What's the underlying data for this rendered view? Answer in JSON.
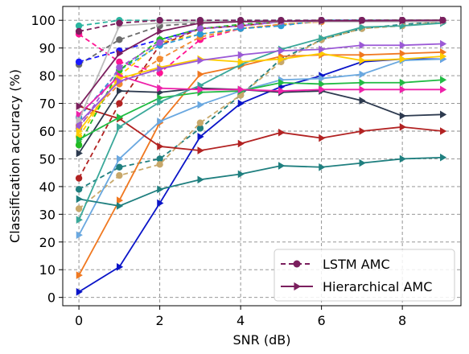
{
  "chart_data": {
    "type": "line",
    "xlabel": "SNR (dB)",
    "ylabel": "Classification accuracy (%)",
    "xlim": [
      -0.4,
      9.45
    ],
    "ylim": [
      -3,
      105
    ],
    "xticks": [
      0,
      2,
      4,
      6,
      8
    ],
    "yticks": [
      0,
      10,
      20,
      30,
      40,
      50,
      60,
      70,
      80,
      90,
      100
    ],
    "grid": true,
    "legend_placement": "lower-right",
    "x": [
      0,
      1,
      2,
      3,
      4,
      5,
      6,
      7,
      8,
      9
    ],
    "series": [
      {
        "name": "LSTM AMC",
        "style": "dashed",
        "marker": "circle",
        "color": "#7b1f5e",
        "values": [
          96,
          99,
          100,
          100,
          100,
          100,
          100,
          100,
          100,
          100
        ]
      },
      {
        "name": "Hierarchical AMC",
        "style": "solid",
        "marker": "triangle-right",
        "color": "#7b1f5e",
        "values": [
          69,
          88,
          96,
          99,
          99.5,
          99.7,
          99.8,
          99.8,
          99.9,
          100
        ]
      },
      {
        "style": "dashed",
        "marker": "circle",
        "color": "#2bb5a0",
        "values": [
          98,
          100,
          100,
          100,
          100,
          100,
          100,
          100,
          100,
          100
        ]
      },
      {
        "style": "dashed",
        "marker": "circle",
        "color": "#6b6b6b",
        "values": [
          84,
          93,
          98,
          99,
          99.5,
          99.7,
          100,
          100,
          100,
          100
        ]
      },
      {
        "style": "dashed",
        "marker": "circle",
        "color": "#1a1aff",
        "values": [
          85,
          89,
          93,
          97,
          98,
          99.5,
          100,
          100,
          100,
          100
        ]
      },
      {
        "style": "dashed",
        "marker": "circle",
        "color": "#ff1493",
        "values": [
          95,
          85,
          81,
          93,
          97,
          98.5,
          99.5,
          100,
          100,
          100
        ]
      },
      {
        "style": "dashed",
        "marker": "circle",
        "color": "#ffcc00",
        "values": [
          58,
          80,
          92,
          95,
          97,
          98.5,
          99.5,
          100,
          100,
          100
        ]
      },
      {
        "style": "dashed",
        "marker": "circle",
        "color": "#f28a30",
        "values": [
          62,
          77,
          86,
          94,
          97,
          98.5,
          99.5,
          100,
          100,
          100
        ]
      },
      {
        "style": "dashed",
        "marker": "circle",
        "color": "#b22222",
        "values": [
          43,
          70,
          91,
          97,
          98,
          99.5,
          100,
          100,
          100,
          100
        ]
      },
      {
        "style": "dashed",
        "marker": "circle",
        "color": "#2b9ad6",
        "values": [
          65,
          82,
          91,
          95,
          97,
          98,
          100,
          100,
          100,
          100
        ]
      },
      {
        "style": "dashed",
        "marker": "circle",
        "color": "#1f7f7f",
        "values": [
          39,
          47,
          50,
          61,
          73,
          86,
          93,
          97,
          98.5,
          99.5
        ]
      },
      {
        "style": "dashed",
        "marker": "circle",
        "color": "#c8a86a",
        "values": [
          32,
          44,
          48,
          63,
          73,
          85,
          93,
          97,
          98,
          99.5
        ]
      },
      {
        "style": "dashed",
        "marker": "circle",
        "color": "#22bb22",
        "values": [
          55,
          82,
          93,
          97,
          98.5,
          99.5,
          100,
          100,
          100,
          100
        ]
      },
      {
        "style": "dashed",
        "marker": "circle",
        "color": "#9b59d6",
        "values": [
          61,
          83,
          92,
          97,
          98,
          99.5,
          100,
          100,
          100,
          100
        ]
      },
      {
        "style": "solid",
        "marker": "triangle-right",
        "color": "#0a14c8",
        "values": [
          2,
          11,
          34,
          58,
          70,
          76,
          80,
          85,
          86,
          86
        ]
      },
      {
        "style": "solid",
        "marker": "triangle-right",
        "color": "#f07820",
        "values": [
          8,
          35,
          63,
          80.5,
          83.5,
          87,
          87.5,
          87.5,
          88,
          88.5
        ]
      },
      {
        "style": "solid",
        "marker": "triangle-right",
        "color": "#6aa8e0",
        "values": [
          22.5,
          50,
          63.5,
          69.5,
          74.5,
          78.5,
          79,
          80.5,
          85.5,
          86
        ]
      },
      {
        "style": "solid",
        "marker": "triangle-right",
        "color": "#1f7f7f",
        "values": [
          35.5,
          33,
          39,
          42.5,
          44.5,
          47.5,
          47,
          48.5,
          50,
          50.5
        ]
      },
      {
        "style": "solid",
        "marker": "triangle-right",
        "color": "#b22222",
        "values": [
          69,
          64.5,
          54.5,
          53,
          55.5,
          59.5,
          57.5,
          60,
          61.5,
          60
        ]
      },
      {
        "style": "solid",
        "marker": "triangle-right",
        "color": "#2d3a4f",
        "values": [
          52,
          74.5,
          74,
          75.5,
          75,
          74,
          74.5,
          71,
          65.5,
          66
        ]
      },
      {
        "style": "solid",
        "marker": "triangle-right",
        "color": "#22bb44",
        "values": [
          57,
          65,
          72,
          74,
          74.5,
          77.5,
          77,
          77.5,
          77.5,
          78.5
        ]
      },
      {
        "style": "solid",
        "marker": "triangle-right",
        "color": "#3aa89a",
        "values": [
          28,
          61.5,
          70.5,
          76.5,
          84,
          89.5,
          93.5,
          97.5,
          98,
          99
        ]
      },
      {
        "style": "solid",
        "marker": "triangle-right",
        "color": "#ee22aa",
        "values": [
          66,
          80,
          75.5,
          75,
          75,
          74.5,
          75,
          75,
          75,
          75
        ]
      },
      {
        "style": "solid",
        "marker": "triangle-right",
        "color": "#ffcc00",
        "values": [
          60,
          79,
          83,
          86,
          85,
          86,
          88,
          85.5,
          86,
          87
        ]
      },
      {
        "style": "solid",
        "marker": "triangle-right",
        "color": "#9b59d6",
        "values": [
          63,
          78,
          82.5,
          85.5,
          87.5,
          89,
          89.5,
          91,
          91,
          91.5
        ]
      },
      {
        "style": "solid",
        "marker": "triangle-right",
        "color": "#bcbcbc",
        "values": [
          64,
          98,
          99,
          99.5,
          99.5,
          99.5,
          99.5,
          99.5,
          99.5,
          99.5
        ]
      }
    ]
  }
}
